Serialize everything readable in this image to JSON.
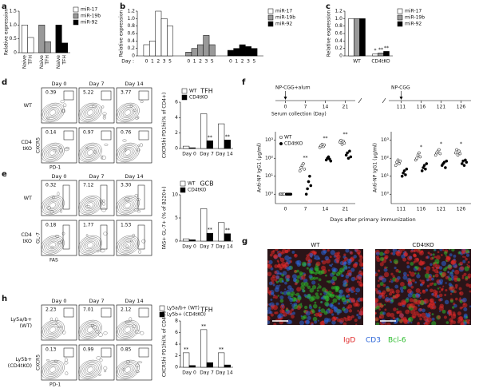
{
  "panel_labels": [
    "a",
    "b",
    "c",
    "d",
    "e",
    "f",
    "g",
    "h"
  ],
  "a": {
    "type": "bar",
    "y_label": "Relative expression",
    "categories": [
      "Naive",
      "TFH"
    ],
    "ylim": [
      0,
      1.5
    ],
    "yticks": [
      0,
      0.5,
      {
        "value": 1,
        "label": "1.0"
      },
      1.5
    ],
    "series": [
      {
        "name": "miR-17",
        "color": "#ffffff",
        "values": [
          1.0,
          0.55
        ]
      },
      {
        "name": "miR-19b",
        "color": "#999999",
        "values": [
          1.0,
          0.4
        ]
      },
      {
        "name": "miR-92",
        "color": "#000000",
        "values": [
          1.0,
          0.35
        ]
      }
    ]
  },
  "b": {
    "type": "bar",
    "y_label": "Relative expression",
    "x_label": "Day :",
    "categories": [
      "0",
      "1",
      "2",
      "3",
      "5"
    ],
    "ylim": [
      0,
      1.2
    ],
    "yticks": [
      0,
      0.2,
      0.4,
      0.6,
      0.8,
      {
        "value": 1,
        "label": "1.0"
      },
      1.2
    ],
    "series": [
      {
        "name": "miR-17",
        "color": "#ffffff",
        "values": [
          0.3,
          0.4,
          1.2,
          1.0,
          0.8
        ]
      },
      {
        "name": "miR-19b",
        "color": "#999999",
        "values": [
          0.1,
          0.2,
          0.3,
          0.55,
          0.3
        ]
      },
      {
        "name": "miR-92",
        "color": "#000000",
        "values": [
          0.15,
          0.2,
          0.3,
          0.25,
          0.2
        ]
      }
    ]
  },
  "c": {
    "type": "bar",
    "y_label": "Relative expression",
    "categories": [
      "WT",
      "CD4tKO"
    ],
    "ylim": [
      0,
      1.2
    ],
    "yticks": [
      0,
      0.2,
      0.4,
      0.6,
      0.8,
      {
        "value": 1,
        "label": "1.0"
      },
      1.2
    ],
    "series": [
      {
        "name": "miR-17",
        "color": "#ffffff",
        "values": [
          1.0,
          0.05
        ],
        "significance": [
          null,
          "*"
        ]
      },
      {
        "name": "miR-19b",
        "color": "#999999",
        "values": [
          1.0,
          0.08
        ],
        "significance": [
          null,
          "**"
        ]
      },
      {
        "name": "miR-92",
        "color": "#000000",
        "values": [
          1.0,
          0.12
        ],
        "significance": [
          null,
          "**"
        ]
      }
    ]
  },
  "d": {
    "days": [
      "Day 0",
      "Day 7",
      "Day 14"
    ],
    "x_axis": "PD-1",
    "y_axis": "CXCR5",
    "rows": [
      {
        "label": [
          "WT"
        ],
        "gates": [
          "0.39",
          "5.22",
          "3.77"
        ]
      },
      {
        "label": [
          "CD4",
          "tKO"
        ],
        "gates": [
          "0.14",
          "0.97",
          "0.76"
        ]
      }
    ],
    "chart": {
      "type": "bar",
      "title": "TFH",
      "y_label": "CXCR5hi PD1hi(% of CD4+)",
      "ylim": [
        0,
        6
      ],
      "yticks": [
        0,
        2,
        4,
        6
      ],
      "series": [
        {
          "name": "WT",
          "color": "#ffffff",
          "values": [
            0.3,
            4.5,
            3.2
          ],
          "significance": [
            null,
            null,
            null
          ]
        },
        {
          "name": "CD4tKO",
          "color": "#000000",
          "values": [
            0.1,
            1.0,
            1.1
          ],
          "significance": [
            null,
            "**",
            "**"
          ]
        }
      ]
    }
  },
  "e": {
    "days": [
      "Day 0",
      "Day 7",
      "Day 14"
    ],
    "x_axis": "FAS",
    "y_axis": "GL-7",
    "rows": [
      {
        "label": [
          "WT"
        ],
        "gates": [
          "0.32",
          "7.12",
          "3.30"
        ]
      },
      {
        "label": [
          "CD4",
          "tKO"
        ],
        "gates": [
          "0.18",
          "1.77",
          "1.53"
        ]
      }
    ],
    "chart": {
      "type": "bar",
      "title": "GCB",
      "y_label": "FAS+ GL-7+ (% of B220+)",
      "ylim": [
        0,
        10
      ],
      "yticks": [
        0,
        5,
        10
      ],
      "series": [
        {
          "name": "WT",
          "color": "#ffffff",
          "values": [
            0.5,
            7,
            4
          ],
          "significance": [
            null,
            null,
            null
          ]
        },
        {
          "name": "CD4tKO",
          "color": "#000000",
          "values": [
            0.3,
            1.7,
            1.6
          ],
          "significance": [
            null,
            "**",
            "**"
          ]
        }
      ]
    }
  },
  "f": {
    "timeline": {
      "prime": "NP-CGG+alum",
      "boost": "NP-CGG",
      "serum": "Serum collection (Day)",
      "days": [
        "0",
        "7",
        "14",
        "21",
        "111",
        "116",
        "121",
        "126"
      ]
    },
    "chart": {
      "type": "scatter",
      "log_y": true,
      "y_label": "Anti-NP IgG1 (μg/ml)",
      "x_label": "Days after primary immunization",
      "ylim": [
        0.3,
        3000
      ],
      "yticks": [
        {
          "value": 1,
          "label": "10⁰"
        },
        {
          "value": 10,
          "label": "10¹"
        },
        {
          "value": 100,
          "label": "10²"
        },
        {
          "value": 1000,
          "label": "10³"
        }
      ],
      "significance": [
        null,
        "**",
        "**",
        "**",
        null,
        "*",
        "*",
        "*"
      ],
      "series": [
        {
          "name": "WT",
          "values": [
            [
              1,
              1,
              1,
              1,
              1
            ],
            [
              20,
              30,
              40,
              50,
              25
            ],
            [
              400,
              500,
              600,
              450,
              550
            ],
            [
              800,
              1000,
              600,
              900,
              700
            ],
            [
              40,
              60,
              80,
              50,
              70
            ],
            [
              80,
              100,
              150,
              200,
              120
            ],
            [
              150,
              200,
              250,
              300,
              180
            ],
            [
              200,
              300,
              150,
              250,
              180
            ]
          ]
        },
        {
          "name": "CD4tKO",
          "values": [
            [
              1,
              1,
              1,
              1,
              1
            ],
            [
              1,
              2,
              5,
              10,
              3
            ],
            [
              80,
              100,
              120,
              90,
              70
            ],
            [
              150,
              200,
              100,
              250,
              120
            ],
            [
              10,
              15,
              20,
              12,
              25
            ],
            [
              20,
              30,
              40,
              25,
              50
            ],
            [
              40,
              50,
              60,
              30,
              70
            ],
            [
              50,
              70,
              40,
              80,
              60
            ]
          ]
        }
      ]
    }
  },
  "g": {
    "titles": [
      "WT",
      "CD4tKO"
    ],
    "legend": [
      {
        "name": "IgD",
        "color": "#e02828"
      },
      {
        "name": "CD3",
        "color": "#2a64d8"
      },
      {
        "name": "Bcl-6",
        "color": "#2cbc2c"
      }
    ]
  },
  "h": {
    "days": [
      "Day 0",
      "Day 7",
      "Day 14"
    ],
    "x_axis": "PD-1",
    "y_axis": "CXCR5",
    "rows": [
      {
        "label": [
          "Ly5a/b+",
          "(WT)"
        ],
        "gates": [
          "2.23",
          "7.01",
          "2.12"
        ]
      },
      {
        "label": [
          "Ly5b+",
          "(CD4tKO)"
        ],
        "gates": [
          "0.13",
          "0.99",
          "0.85"
        ]
      }
    ],
    "chart": {
      "type": "bar",
      "title": "TFH",
      "y_label": "CXCR5hi PD1hi(% of CD4+)",
      "ylim": [
        0,
        8
      ],
      "yticks": [
        0,
        2,
        4,
        6,
        8
      ],
      "series": [
        {
          "name": "Ly5a/b+ (WT)",
          "color": "#ffffff",
          "values": [
            2.5,
            6.5,
            2.5
          ],
          "significance": [
            "**",
            "**",
            "**"
          ]
        },
        {
          "name": "Ly5b+ (CD4tKO)",
          "color": "#000000",
          "values": [
            0.3,
            0.8,
            0.4
          ],
          "significance": [
            null,
            null,
            null
          ]
        }
      ]
    }
  }
}
